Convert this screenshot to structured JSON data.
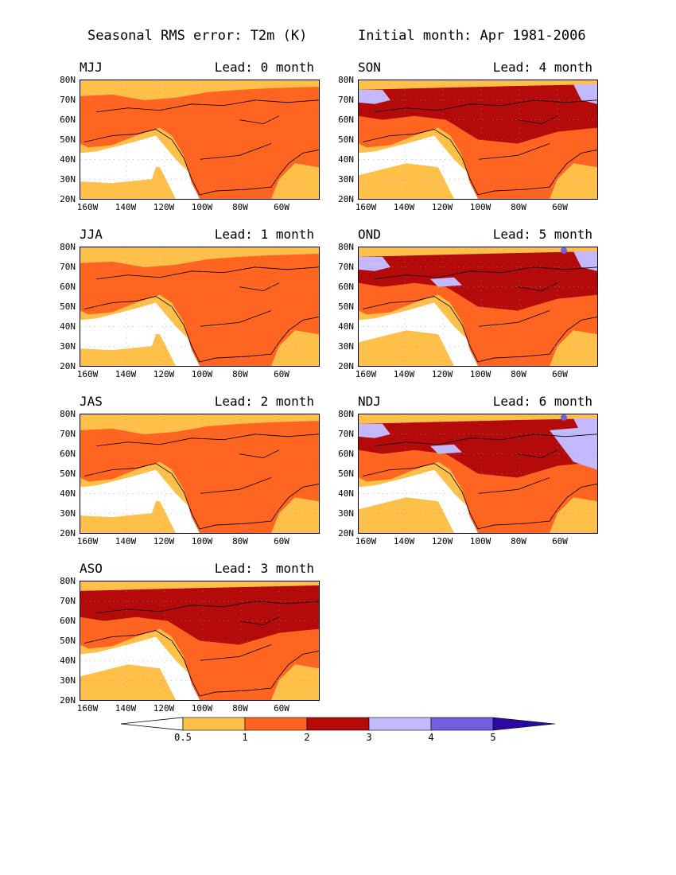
{
  "header": {
    "left": "Seasonal RMS error: T2m (K)",
    "right": "Initial month: Apr 1981-2006"
  },
  "y_ticks": [
    "80N",
    "70N",
    "60N",
    "50N",
    "40N",
    "30N",
    "20N"
  ],
  "x_ticks": [
    "160W",
    "140W",
    "120W",
    "100W",
    "80W",
    "60W"
  ],
  "panels": [
    {
      "season": "MJJ",
      "lead": "Lead: 0 month",
      "level": 0
    },
    {
      "season": "SON",
      "lead": "Lead: 4 month",
      "level": 4
    },
    {
      "season": "JJA",
      "lead": "Lead: 1 month",
      "level": 1
    },
    {
      "season": "OND",
      "lead": "Lead: 5 month",
      "level": 5
    },
    {
      "season": "JAS",
      "lead": "Lead: 2 month",
      "level": 2
    },
    {
      "season": "NDJ",
      "lead": "Lead: 6 month",
      "level": 6
    },
    {
      "season": "ASO",
      "lead": "Lead: 3 month",
      "level": 3
    }
  ],
  "colorbar": {
    "labels": [
      "0.5",
      "1",
      "2",
      "3",
      "4",
      "5"
    ],
    "colors": [
      "#ffffff",
      "#ffc04a",
      "#ff6420",
      "#b40a0a",
      "#c4b8ff",
      "#7060e0",
      "#2a0aa0"
    ]
  }
}
